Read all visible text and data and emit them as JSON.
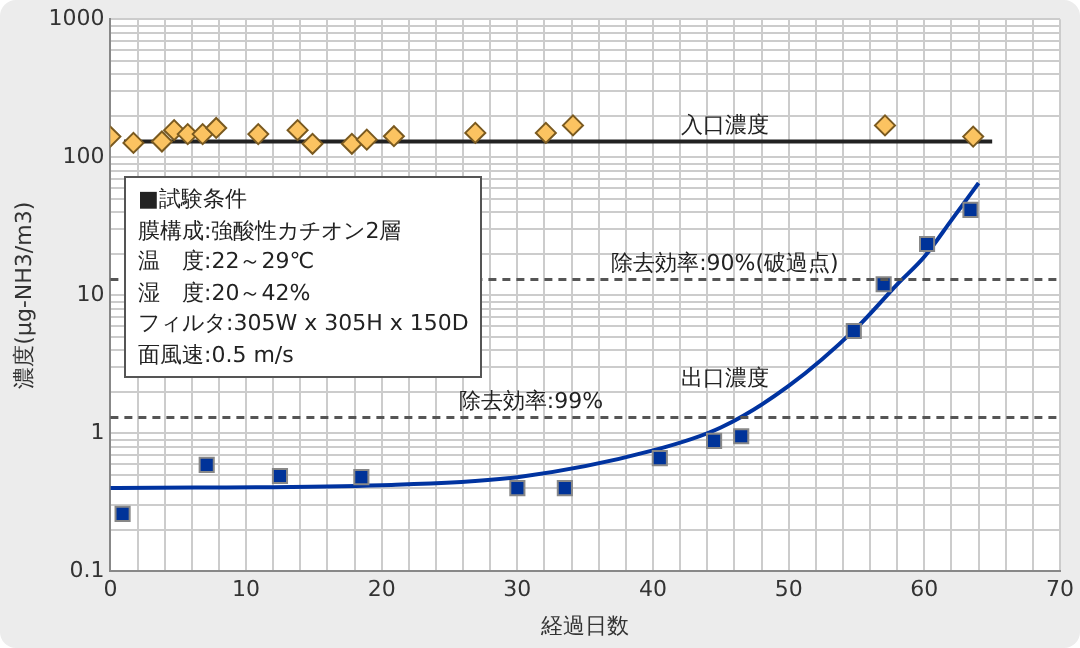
{
  "chart_data": {
    "type": "scatter",
    "xlabel": "経過日数",
    "ylabel": "濃度(μg-NH3/m3)",
    "log": "y",
    "grid": true,
    "legend": false,
    "xlim": [
      0,
      70
    ],
    "xticks": [
      0,
      {
        "value": 2,
        "label": null
      },
      {
        "value": 4,
        "label": null
      },
      {
        "value": 6,
        "label": null
      },
      {
        "value": 8,
        "label": null
      },
      10,
      {
        "value": 12,
        "label": null
      },
      {
        "value": 14,
        "label": null
      },
      {
        "value": 16,
        "label": null
      },
      {
        "value": 18,
        "label": null
      },
      20,
      {
        "value": 22,
        "label": null
      },
      {
        "value": 24,
        "label": null
      },
      {
        "value": 26,
        "label": null
      },
      {
        "value": 28,
        "label": null
      },
      30,
      {
        "value": 32,
        "label": null
      },
      {
        "value": 34,
        "label": null
      },
      {
        "value": 36,
        "label": null
      },
      {
        "value": 38,
        "label": null
      },
      40,
      {
        "value": 42,
        "label": null
      },
      {
        "value": 44,
        "label": null
      },
      {
        "value": 46,
        "label": null
      },
      {
        "value": 48,
        "label": null
      },
      50,
      {
        "value": 52,
        "label": null
      },
      {
        "value": 54,
        "label": null
      },
      {
        "value": 56,
        "label": null
      },
      {
        "value": 58,
        "label": null
      },
      60,
      {
        "value": 62,
        "label": null
      },
      {
        "value": 64,
        "label": null
      },
      {
        "value": 66,
        "label": null
      },
      {
        "value": 68,
        "label": null
      },
      70
    ],
    "ylim": [
      0.1,
      1000
    ],
    "yticks": [
      0.1,
      {
        "value": 0.2,
        "label": null
      },
      {
        "value": 0.3,
        "label": null
      },
      {
        "value": 0.4,
        "label": null
      },
      {
        "value": 0.5,
        "label": null
      },
      {
        "value": 0.6,
        "label": null
      },
      {
        "value": 0.7,
        "label": null
      },
      {
        "value": 0.8,
        "label": null
      },
      {
        "value": 0.9,
        "label": null
      },
      1,
      {
        "value": 2,
        "label": null
      },
      {
        "value": 3,
        "label": null
      },
      {
        "value": 4,
        "label": null
      },
      {
        "value": 5,
        "label": null
      },
      {
        "value": 6,
        "label": null
      },
      {
        "value": 7,
        "label": null
      },
      {
        "value": 8,
        "label": null
      },
      {
        "value": 9,
        "label": null
      },
      10,
      {
        "value": 20,
        "label": null
      },
      {
        "value": 30,
        "label": null
      },
      {
        "value": 40,
        "label": null
      },
      {
        "value": 50,
        "label": null
      },
      {
        "value": 60,
        "label": null
      },
      {
        "value": 70,
        "label": null
      },
      {
        "value": 80,
        "label": null
      },
      {
        "value": 90,
        "label": null
      },
      100,
      {
        "value": 200,
        "label": null
      },
      {
        "value": 300,
        "label": null
      },
      {
        "value": 400,
        "label": null
      },
      {
        "value": 500,
        "label": null
      },
      {
        "value": 600,
        "label": null
      },
      {
        "value": 700,
        "label": null
      },
      {
        "value": 800,
        "label": null
      },
      {
        "value": 900,
        "label": null
      },
      1000
    ],
    "series": [
      {
        "type": "scatter",
        "marker": "diamond",
        "color": "#fbc361",
        "x": [
          0,
          1.7,
          3.8,
          4.7,
          5.7,
          6.8,
          7.8,
          10.9,
          13.8,
          14.9,
          17.8,
          18.9,
          20.9,
          26.9,
          32.1,
          34.1,
          57.1,
          63.6
        ],
        "values": [
          141,
          127,
          130,
          157,
          147,
          147,
          163,
          147,
          157,
          125,
          125,
          134,
          142,
          150,
          150,
          170,
          170,
          141
        ]
      },
      {
        "type": "line",
        "name": "入口濃度",
        "marker": "none",
        "color": "#222222",
        "x": [
          1,
          65
        ],
        "values": [
          130,
          130
        ]
      },
      {
        "type": "scatter",
        "marker": "square",
        "color": "#003399",
        "x": [
          0.9,
          7.1,
          12.5,
          18.5,
          30,
          33.5,
          40.5,
          44.5,
          46.5,
          54.8,
          57,
          60.2,
          63.4
        ],
        "values": [
          0.26,
          0.59,
          0.49,
          0.48,
          0.4,
          0.4,
          0.66,
          0.88,
          0.95,
          5.5,
          12,
          23.5,
          41.5
        ]
      },
      {
        "type": "line",
        "name": "出口濃度",
        "marker": "none",
        "color": "#0033a0",
        "x": [
          0,
          20,
          30,
          40,
          45,
          50,
          55,
          58,
          60,
          62,
          64
        ],
        "values": [
          0.4,
          0.42,
          0.48,
          0.75,
          1.1,
          2.2,
          5.8,
          12,
          19,
          35,
          65
        ]
      }
    ],
    "ref_lines": [
      {
        "axis": "y",
        "value": 13,
        "line_style": "dashed",
        "color": "#555555"
      },
      {
        "axis": "y",
        "value": 1.3,
        "line_style": "dashed",
        "color": "#555555"
      }
    ],
    "annotations": [
      {
        "text": "除去効率:90%(破過点)",
        "x": 45.3,
        "y": 14
      },
      {
        "text": "除去効率:99%",
        "x": 31,
        "y": 1.4
      },
      "■試験条件",
      "膜構成:強酸性カチオン2層",
      "温　度:22～29℃",
      "湿　度:20～42%",
      "フィルタ:305W x 305H x 150D",
      "面風速:0.5 m/s"
    ]
  }
}
